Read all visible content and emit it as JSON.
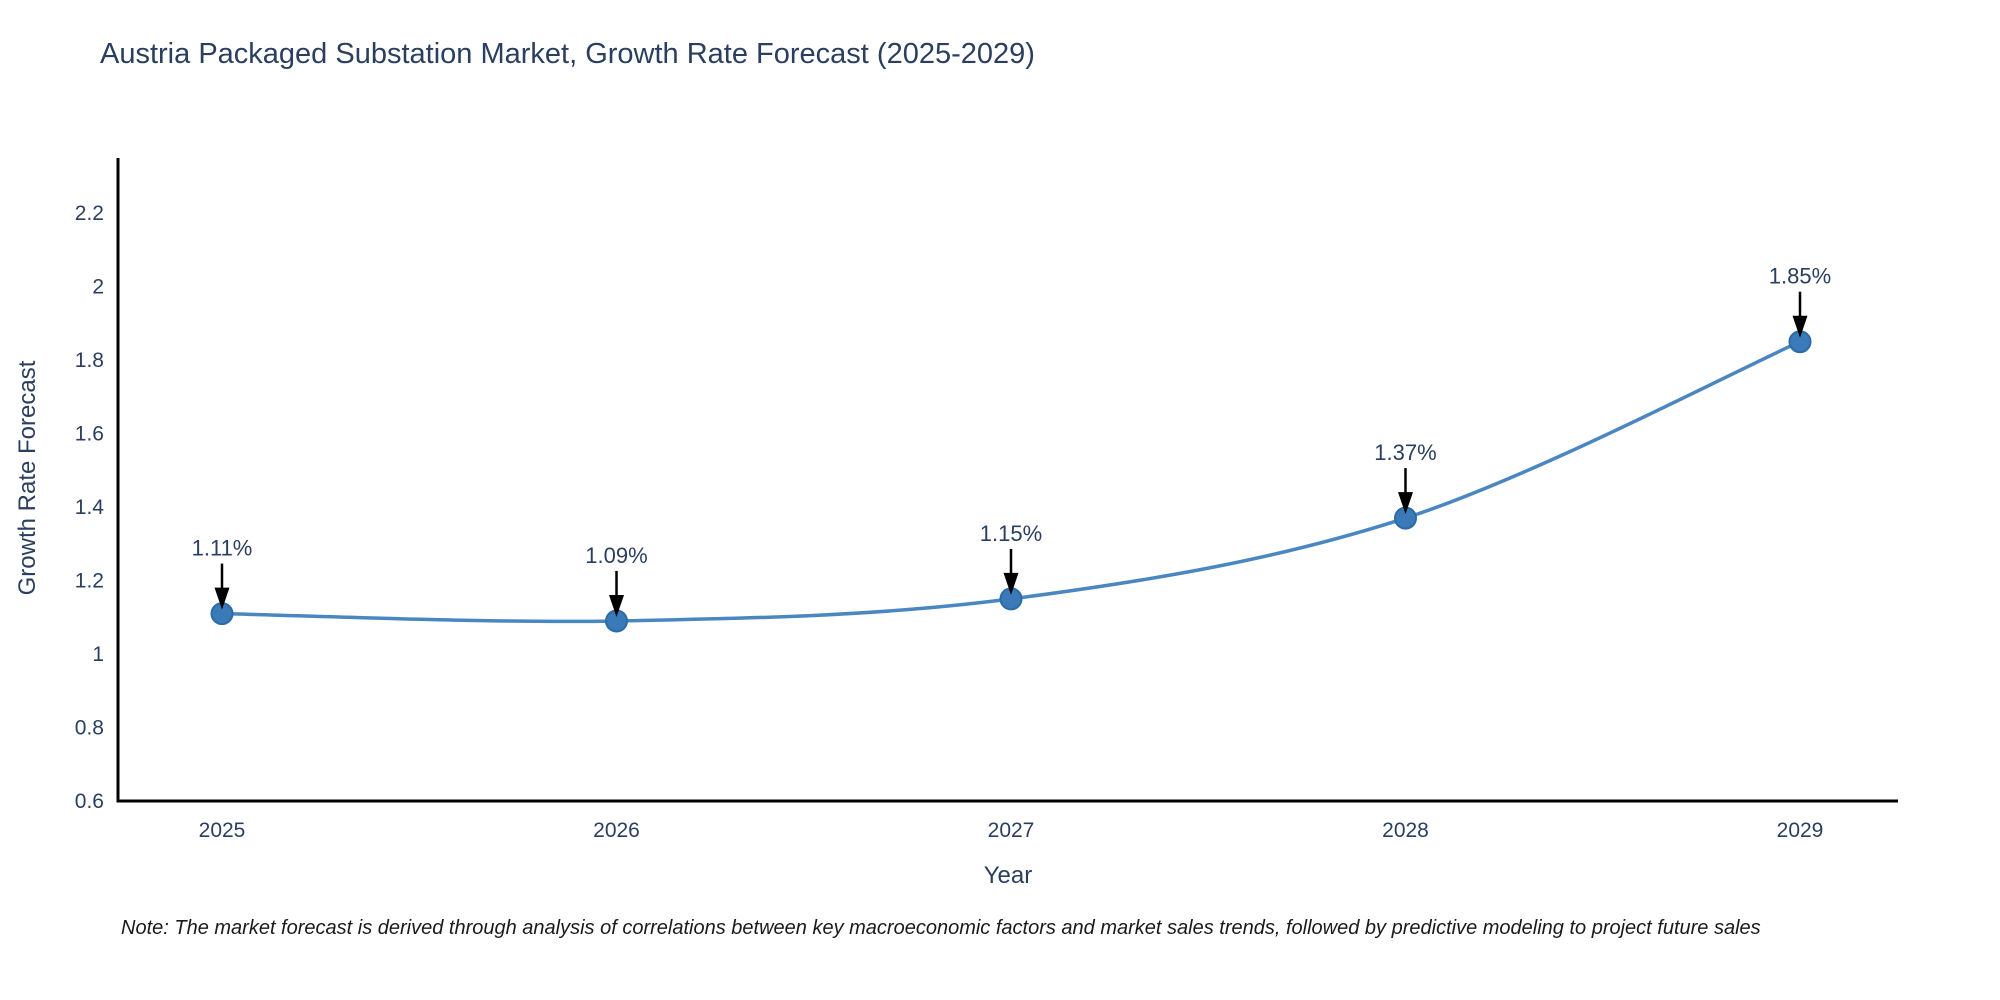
{
  "title": "Austria Packaged Substation Market, Growth Rate Forecast (2025-2029)",
  "footnote": "Note: The market forecast is derived through analysis of correlations between key macroeconomic factors and market sales trends, followed by predictive modeling to project future sales",
  "chart_data": {
    "type": "line",
    "title": "Austria Packaged Substation Market, Growth Rate Forecast (2025-2029)",
    "xlabel": "Year",
    "ylabel": "Growth Rate Forecast",
    "x": [
      2025,
      2026,
      2027,
      2028,
      2029
    ],
    "x_tick_labels": [
      "2025",
      "2026",
      "2027",
      "2028",
      "2029"
    ],
    "series": [
      {
        "name": "Growth Rate Forecast",
        "values": [
          1.11,
          1.09,
          1.15,
          1.37,
          1.85
        ],
        "point_labels": [
          "1.11%",
          "1.09%",
          "1.15%",
          "1.37%",
          "1.85%"
        ]
      }
    ],
    "y_tick_labels": [
      "0.6",
      "0.8",
      "1",
      "1.2",
      "1.4",
      "1.6",
      "1.8",
      "2",
      "2.2"
    ],
    "y_tick_values": [
      0.6,
      0.8,
      1.0,
      1.2,
      1.4,
      1.6,
      1.8,
      2.0,
      2.2
    ],
    "ylim": [
      0.6,
      2.35
    ],
    "line_shape": "spline",
    "grid": false,
    "legend": "none",
    "colors": {
      "line": "#4a87c1",
      "marker_fill": "#3b7ab8",
      "marker_edge": "#2e6ba6",
      "tick_text": "#2a3f5f",
      "annotation_text": "#2a3f5f",
      "annotation_arrow": "#000000",
      "axis_line": "#000000",
      "background": "#ffffff"
    }
  }
}
